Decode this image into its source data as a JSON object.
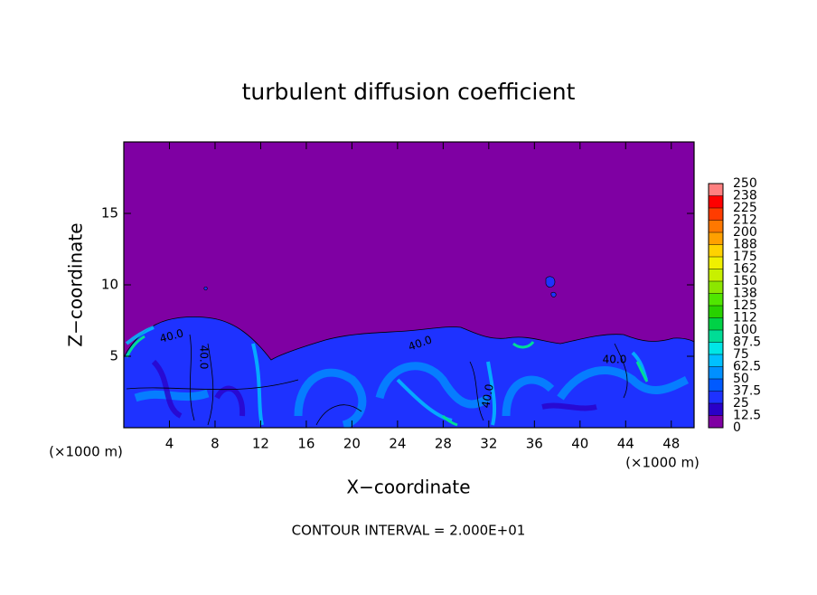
{
  "chart_data": {
    "type": "contour",
    "title": "turbulent diffusion coefficient",
    "xlabel": "X−coordinate",
    "ylabel": "Z−coordinate",
    "x_unit_left": "(×1000 m)",
    "x_unit_right": "(×1000 m)",
    "footnote": "CONTOUR INTERVAL = 2.000E+01",
    "xlim": [
      0,
      50
    ],
    "xticks": [
      4,
      8,
      12,
      16,
      20,
      24,
      28,
      32,
      36,
      40,
      44,
      48
    ],
    "ylim": [
      0,
      20
    ],
    "yticks": [
      5,
      10,
      15
    ],
    "contour_labels": [
      "40.0",
      "40.0",
      "40.0",
      "40.0",
      "40.0"
    ],
    "colorbar": {
      "ticks": [
        0,
        12.5,
        25,
        37.5,
        50,
        62.5,
        75,
        87.5,
        100,
        {
          "value": 112.5,
          "label": "112"
        },
        125,
        {
          "value": 137.5,
          "label": "138"
        },
        150,
        {
          "value": 162.5,
          "label": "162"
        },
        175,
        {
          "value": 187.5,
          "label": "188"
        },
        200,
        {
          "value": 212.5,
          "label": "212"
        },
        225,
        {
          "value": 237.5,
          "label": "238"
        },
        250
      ],
      "colors": [
        "#7f00a3",
        "#2a00c8",
        "#1e32ff",
        "#005aff",
        "#0090ff",
        "#00c0ff",
        "#00e6e6",
        "#00dc96",
        "#00d246",
        "#28d200",
        "#50e600",
        "#8ce600",
        "#c8f000",
        "#f0f000",
        "#ffd200",
        "#ffa000",
        "#ff7800",
        "#ff3c00",
        "#ff0000",
        "#ff8080"
      ]
    }
  }
}
